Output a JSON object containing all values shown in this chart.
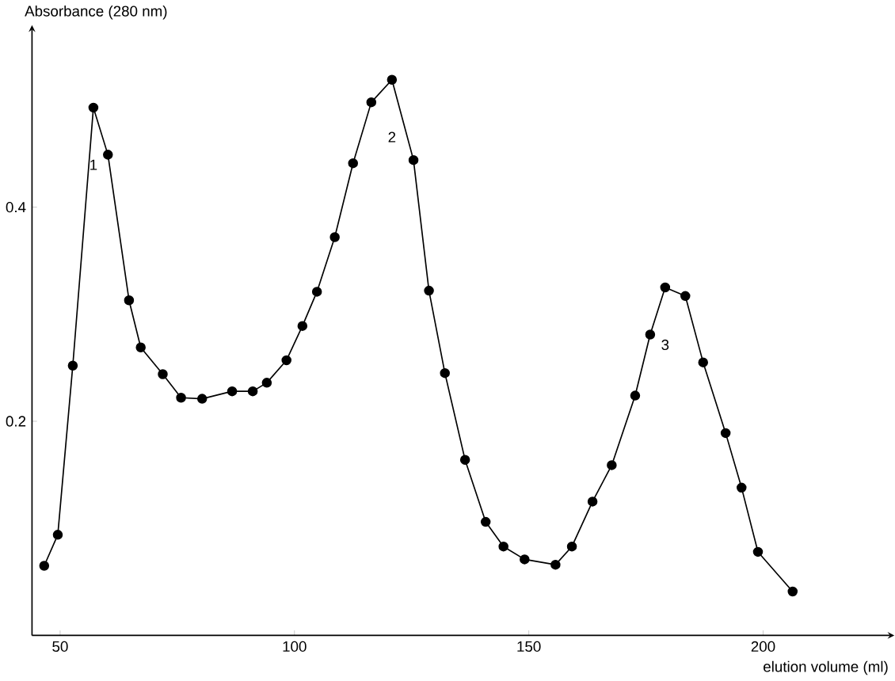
{
  "chart_data": {
    "type": "line",
    "ylabel": "Absorbance (280 nm)",
    "xlabel": "elution volume (ml)",
    "x": [
      46.6,
      49.5,
      52.7,
      57.1,
      60.2,
      64.7,
      67.2,
      71.9,
      75.8,
      80.3,
      86.7,
      91.1,
      94.1,
      98.3,
      101.7,
      104.8,
      108.6,
      112.5,
      116.4,
      120.8,
      125.4,
      128.7,
      132.1,
      136.4,
      140.8,
      144.6,
      149.1,
      155.7,
      159.2,
      163.6,
      167.7,
      172.7,
      175.9,
      179.1,
      183.4,
      187.2,
      192.0,
      195.4,
      198.9,
      206.3
    ],
    "series": [
      {
        "color": "#000000",
        "values": [
          0.065,
          0.094,
          0.252,
          0.493,
          0.449,
          0.313,
          0.269,
          0.244,
          0.222,
          0.221,
          0.228,
          0.228,
          0.236,
          0.257,
          0.289,
          0.321,
          0.372,
          0.441,
          0.498,
          0.519,
          0.444,
          0.322,
          0.245,
          0.164,
          0.106,
          0.083,
          0.071,
          0.066,
          0.083,
          0.125,
          0.159,
          0.224,
          0.281,
          0.325,
          0.317,
          0.255,
          0.189,
          0.138,
          0.078,
          0.041
        ]
      }
    ],
    "xlim": [
      44,
      228
    ],
    "ylim": [
      0,
      0.57
    ],
    "xticks": [
      50,
      100,
      150,
      200
    ],
    "yticks": [
      0.2,
      0.4
    ],
    "marker": "circle",
    "line_style": "solid",
    "grid": false,
    "annotations": [
      "1",
      "2",
      "3"
    ]
  }
}
